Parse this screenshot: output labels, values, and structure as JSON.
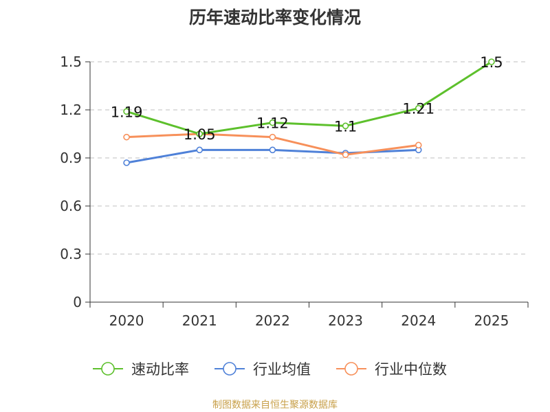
{
  "chart_data": {
    "type": "line",
    "title": "历年速动比率变化情况",
    "xlabel": "",
    "ylabel": "",
    "categories": [
      "2020",
      "2021",
      "2022",
      "2023",
      "2024",
      "2025"
    ],
    "ylim": [
      0,
      1.5
    ],
    "yticks": [
      0,
      0.3,
      0.6,
      0.9,
      1.2,
      1.5
    ],
    "ytick_labels": [
      "0",
      "0.3",
      "0.6",
      "0.9",
      "1.2",
      "1.5"
    ],
    "grid": true,
    "legend_position": "bottom",
    "series": [
      {
        "name": "速动比率",
        "values": [
          1.19,
          1.05,
          1.12,
          1.1,
          1.21,
          1.5
        ],
        "data_labels": [
          "1.19",
          "1.05",
          "1.12",
          "1.1",
          "1.21",
          "1.5"
        ]
      },
      {
        "name": "行业均值",
        "values": [
          0.87,
          0.95,
          0.95,
          0.93,
          0.95,
          null
        ]
      },
      {
        "name": "行业中位数",
        "values": [
          1.03,
          1.05,
          1.03,
          0.92,
          0.98,
          null
        ]
      }
    ]
  },
  "colors": {
    "速动比率": "#5dc02c",
    "行业均值": "#4f81d8",
    "行业中位数": "#f7905a",
    "axis": "#333333",
    "grid": "#cccccc",
    "source": "#c8a04a"
  },
  "source_note": "制图数据来自恒生聚源数据库"
}
